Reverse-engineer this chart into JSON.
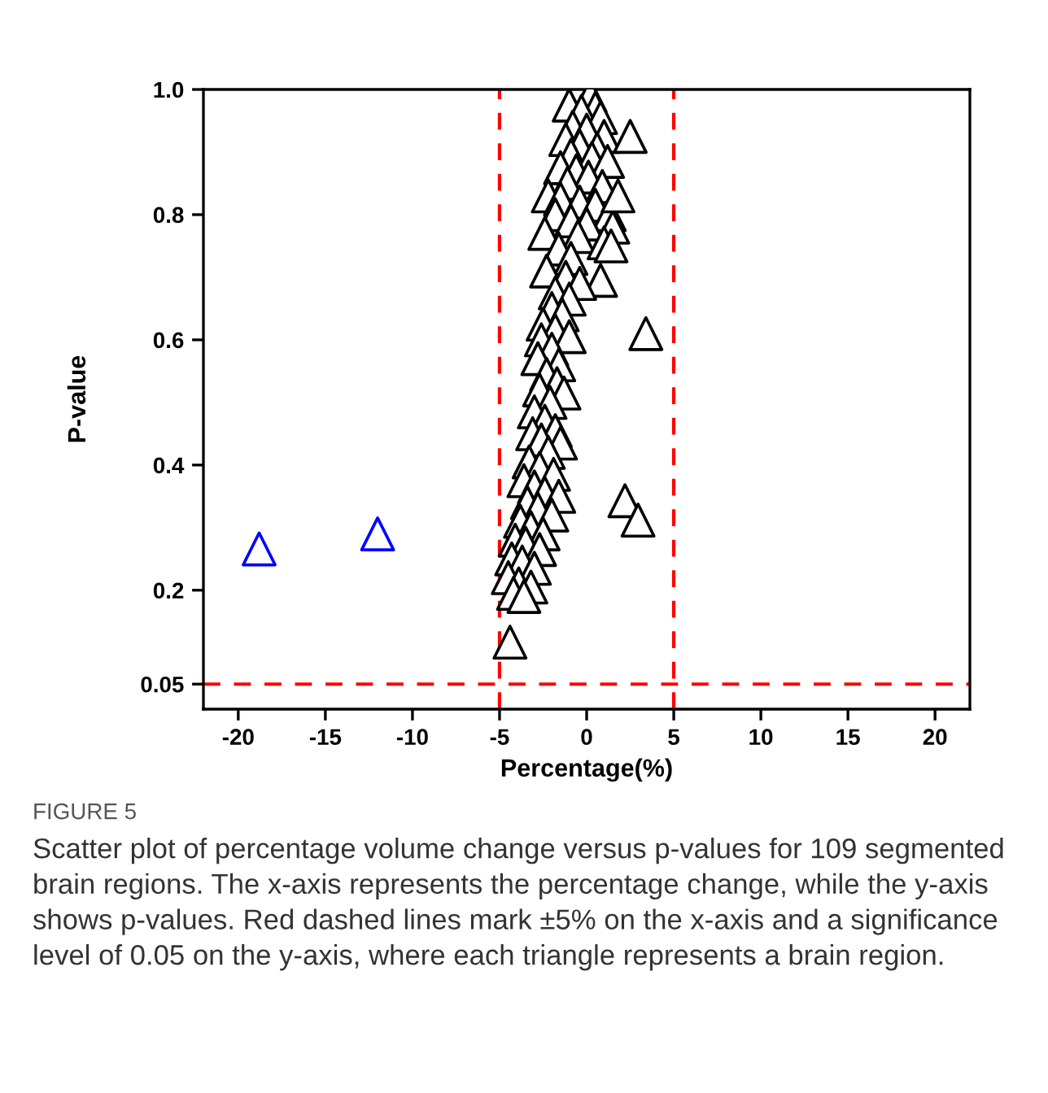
{
  "chart_data": {
    "type": "scatter",
    "xlabel": "Percentage(%)",
    "ylabel": "P-value",
    "xlim": [
      -22,
      22
    ],
    "ylim": [
      0.01,
      1.0
    ],
    "xticks": [
      -20,
      -15,
      -10,
      -5,
      0,
      5,
      10,
      15,
      20
    ],
    "yticks": [
      0.05,
      0.2,
      0.4,
      0.6,
      0.8,
      {
        "value": 1.0,
        "label": "1.0"
      }
    ],
    "marker": "triangle",
    "grid": false,
    "legend": false,
    "ref_lines": [
      {
        "axis": "x",
        "value": -5,
        "color": "#ff0000",
        "line_style": "dashed"
      },
      {
        "axis": "x",
        "value": 5,
        "color": "#ff0000",
        "line_style": "dashed"
      },
      {
        "axis": "y",
        "value": 0.05,
        "color": "#ff0000",
        "line_style": "dashed"
      }
    ],
    "series": [
      {
        "color": "#000000",
        "x": [
          0.2,
          -1.0,
          0.5,
          -0.3,
          0.8,
          -0.8,
          0.0,
          1.0,
          -1.2,
          -0.4,
          0.6,
          -0.9,
          0.3,
          1.2,
          -1.5,
          -0.6,
          0.1,
          -1.1,
          0.9,
          -2.2,
          -1.5,
          -0.4,
          0.5,
          1.3,
          -1.8,
          -0.9,
          0.0,
          1.5,
          -2.4,
          -0.5,
          1.0,
          1.4,
          -1.6,
          -0.9,
          -2.3,
          -1.2,
          0.8,
          -0.4,
          -1.8,
          -1.0,
          -2.0,
          -1.4,
          -2.5,
          -1.8,
          -1.0,
          -2.6,
          -2.0,
          -2.8,
          -1.6,
          -2.3,
          -1.7,
          -2.7,
          -1.3,
          -2.1,
          -3.0,
          -2.4,
          -1.8,
          -3.1,
          -2.6,
          -1.5,
          -2.2,
          -3.3,
          -2.7,
          -1.9,
          -3.6,
          -3.0,
          -2.4,
          -1.6,
          -3.4,
          -2.8,
          -2.0,
          -3.8,
          -3.2,
          -2.5,
          -4.1,
          -3.5,
          -2.7,
          -4.3,
          -3.7,
          -3.0,
          -4.5,
          -3.9,
          -3.2,
          -4.2,
          -3.6,
          2.5,
          1.8,
          3.4,
          2.2,
          2.95,
          -4.4
        ],
        "values": [
          0.99,
          0.975,
          0.97,
          0.965,
          0.955,
          0.94,
          0.935,
          0.925,
          0.92,
          0.91,
          0.905,
          0.895,
          0.89,
          0.885,
          0.875,
          0.87,
          0.86,
          0.85,
          0.845,
          0.83,
          0.825,
          0.82,
          0.815,
          0.8,
          0.8,
          0.79,
          0.785,
          0.78,
          0.77,
          0.765,
          0.755,
          0.75,
          0.745,
          0.73,
          0.71,
          0.7,
          0.695,
          0.69,
          0.675,
          0.665,
          0.65,
          0.64,
          0.625,
          0.615,
          0.605,
          0.6,
          0.585,
          0.57,
          0.56,
          0.545,
          0.53,
          0.52,
          0.515,
          0.5,
          0.485,
          0.47,
          0.455,
          0.45,
          0.44,
          0.435,
          0.42,
          0.405,
          0.395,
          0.385,
          0.375,
          0.365,
          0.355,
          0.35,
          0.34,
          0.33,
          0.32,
          0.31,
          0.3,
          0.29,
          0.28,
          0.275,
          0.265,
          0.25,
          0.245,
          0.235,
          0.22,
          0.21,
          0.205,
          0.195,
          0.19,
          0.925,
          0.83,
          0.61,
          0.343,
          0.312,
          0.117
        ]
      },
      {
        "color": "#0000ff",
        "x": [
          -18.8,
          -12.0
        ],
        "values": [
          0.266,
          0.29
        ]
      }
    ],
    "annotations": [
      "FIGURE 5",
      "Scatter plot of percentage volume change versus p-values for 109 segmented brain regions. The x-axis represents the percentage change, while the y-axis shows p-values. Red dashed lines mark ±5% on the x-axis and a significance level of 0.05 on the y-axis, where each triangle represents a brain region."
    ]
  }
}
